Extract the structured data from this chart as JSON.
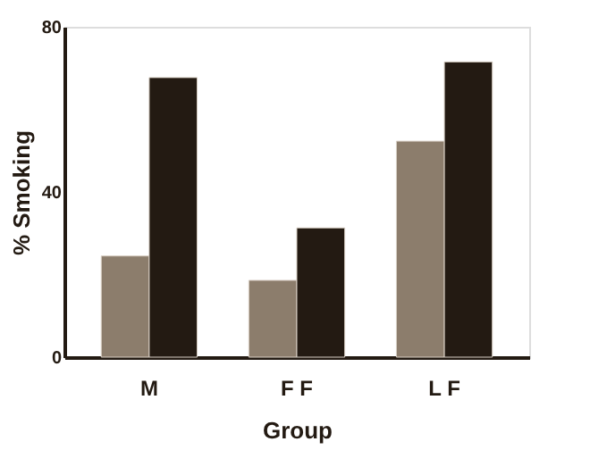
{
  "chart_data": {
    "type": "bar",
    "xlabel": "Group",
    "ylabel": "% Smoking",
    "categories": [
      "M",
      "F F",
      "L F"
    ],
    "series": [
      {
        "color": "#8c7d6c",
        "values": [
          24.5,
          18.6,
          52.3
        ]
      },
      {
        "color": "#231a12",
        "values": [
          67.7,
          31.3,
          71.5
        ]
      }
    ],
    "ylim": [
      0,
      80
    ],
    "yticks": [
      0,
      40,
      80
    ],
    "grid": false,
    "legend": false
  }
}
